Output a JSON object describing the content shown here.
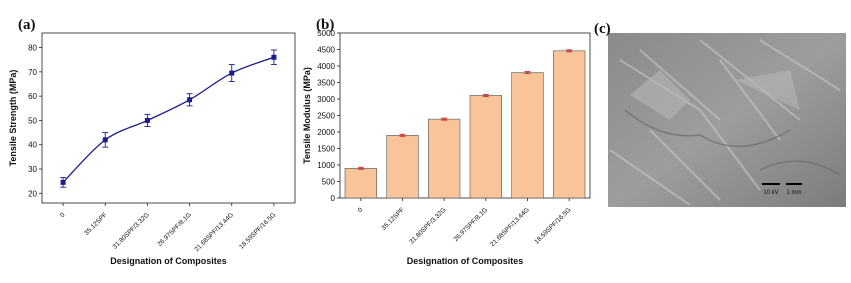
{
  "chart_data": [
    {
      "type": "line",
      "label": "(a)",
      "x_label": "Designation of Composites",
      "y_label": "Tensile Strength (MPa)",
      "categories": [
        "0",
        "35.12SPF",
        "31.80SPF/3.32G",
        "26.97SPF/8.1G",
        "21.68SPF/13.44G",
        "18.59SPF/16.5G"
      ],
      "series": [
        {
          "color": "#1c1c8f",
          "values": [
            24.5,
            42,
            50,
            58.5,
            69.5,
            76
          ],
          "errors": [
            2,
            3,
            2.5,
            2.5,
            3.5,
            3
          ]
        }
      ],
      "ylim": [
        16,
        86
      ],
      "yticks": [
        20,
        30,
        40,
        50,
        60,
        70,
        80
      ]
    },
    {
      "type": "bar",
      "label": "(b)",
      "x_label": "Designation of Composites",
      "y_label": "Tensile Modulus (MPa)",
      "categories": [
        "0",
        "35.12SPF",
        "31.80SPF/3.32G",
        "26.97SPF/8.1G",
        "21.68SPF/13.44G",
        "18.59SPF/16.5G"
      ],
      "series": [
        {
          "color": "#f9c49a",
          "error_color": "#d62020",
          "values": [
            900,
            1900,
            2390,
            3110,
            3800,
            4460
          ],
          "errors": [
            30,
            30,
            30,
            30,
            30,
            30
          ]
        }
      ],
      "ylim": [
        0,
        5000
      ],
      "yticks": [
        0,
        500,
        1000,
        1500,
        2000,
        2500,
        3000,
        3500,
        4000,
        4500,
        5000
      ]
    }
  ],
  "image_panel": {
    "label": "(c)",
    "scale_labels": [
      "10 kV",
      "1 mm"
    ]
  }
}
